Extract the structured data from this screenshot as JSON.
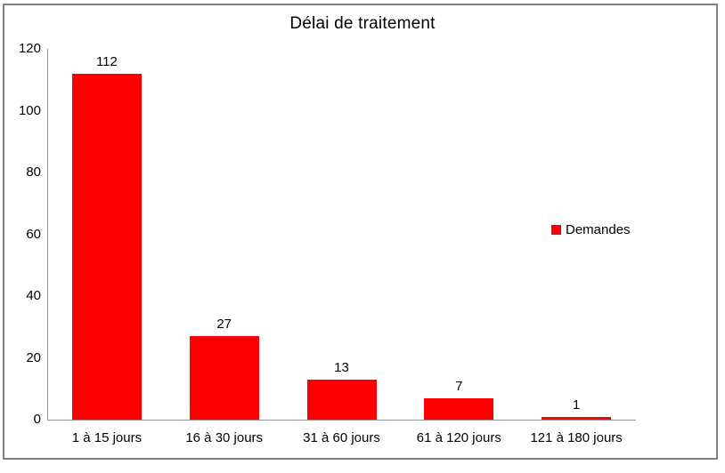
{
  "window": {
    "background": "#FFFFFF",
    "border_color": "#808080"
  },
  "chart_data": {
    "type": "bar",
    "title": "Délai de traitement",
    "categories": [
      "1 à 15 jours",
      "16 à 30 jours",
      "31 à 60 jours",
      "61 à 120 jours",
      "121 à 180 jours"
    ],
    "series": [
      {
        "name": "Demandes",
        "values": [
          112,
          27,
          13,
          7,
          1
        ]
      }
    ],
    "data_labels_shown": true,
    "xlabel": "",
    "ylabel": "",
    "ylim": [
      0,
      120
    ],
    "yticks": [
      0,
      20,
      40,
      60,
      80,
      100,
      120
    ],
    "grid": false,
    "bar_color": "#FF0000",
    "axis_color": "#969696",
    "text_color": "#000000",
    "legend": {
      "label": "Demandes",
      "marker_color": "#FF0000",
      "position": "right-overlay"
    }
  }
}
